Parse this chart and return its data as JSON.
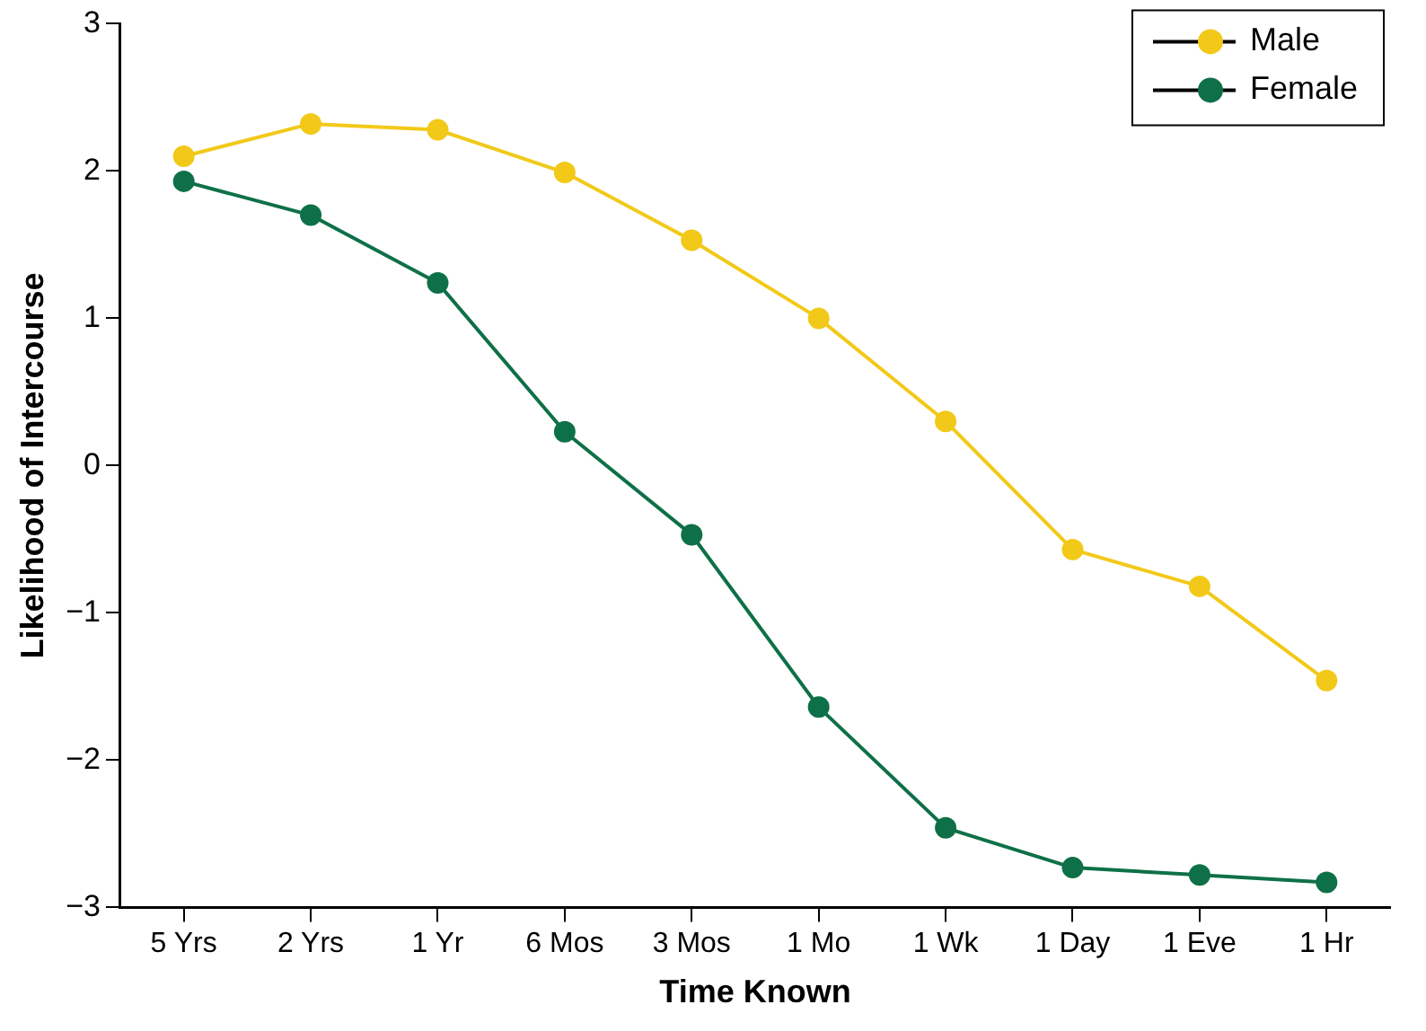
{
  "chart_data": {
    "type": "line",
    "xlabel": "Time Known",
    "ylabel": "Likelihood of Intercourse",
    "categories": [
      "5 Yrs",
      "2 Yrs",
      "1 Yr",
      "6 Mos",
      "3 Mos",
      "1 Mo",
      "1 Wk",
      "1 Day",
      "1 Eve",
      "1 Hr"
    ],
    "series": [
      {
        "name": "Male",
        "color": "#f2c919",
        "values": [
          2.1,
          2.32,
          2.28,
          1.99,
          1.53,
          1.0,
          0.3,
          -0.57,
          -0.82,
          -1.46
        ]
      },
      {
        "name": "Female",
        "color": "#0e7048",
        "values": [
          1.93,
          1.7,
          1.24,
          0.23,
          -0.47,
          -1.64,
          -2.46,
          -2.73,
          -2.78,
          -2.83
        ]
      }
    ],
    "ylim": [
      -3,
      3
    ],
    "yticks": [
      {
        "value": -3,
        "label": "−3"
      },
      {
        "value": -2,
        "label": "−2"
      },
      {
        "value": -1,
        "label": "−1"
      },
      0,
      1,
      2,
      3
    ],
    "grid": false,
    "legend": "top right",
    "marker": "circle",
    "line_style": "solid"
  }
}
